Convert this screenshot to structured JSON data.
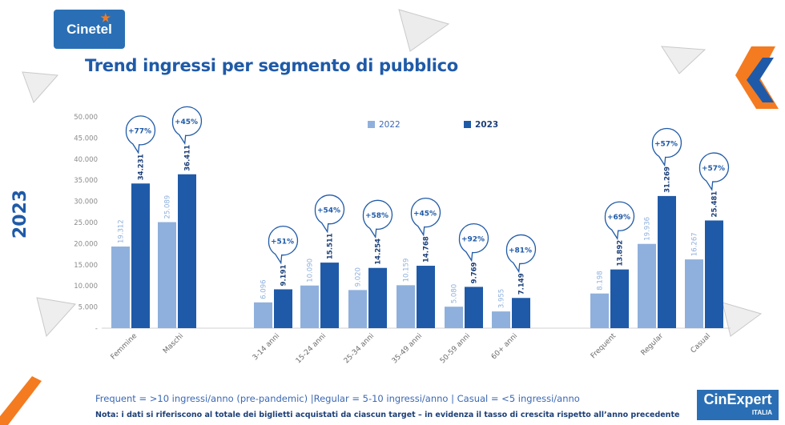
{
  "header": {
    "logo_text": "Cinetel",
    "title": "Trend ingressi per segmento di pubblico",
    "year_label": "2023"
  },
  "colors": {
    "y2022": "#8fb0dc",
    "y2023": "#1f5aa8",
    "title": "#1f5aa8",
    "accent": "#f47b20"
  },
  "chart_data": {
    "type": "bar",
    "title": "Trend ingressi per segmento di pubblico",
    "ylim": [
      0,
      50000
    ],
    "yticks": [
      "-",
      "5.000",
      "10.000",
      "15.000",
      "20.000",
      "25.000",
      "30.000",
      "35.000",
      "40.000",
      "45.000",
      "50.000"
    ],
    "legend": [
      "2022",
      "2023"
    ],
    "categories": [
      "Femmine",
      "Maschi",
      "3-14 anni",
      "15-24 anni",
      "25-34 anni",
      "35-49 anni",
      "50-59 anni",
      "60+ anni",
      "Frequent",
      "Regular",
      "Casual"
    ],
    "groups": [
      [
        0,
        1
      ],
      [
        2,
        3,
        4,
        5,
        6,
        7
      ],
      [
        8,
        9,
        10
      ]
    ],
    "series": [
      {
        "name": "2022",
        "values": [
          19312,
          25089,
          6096,
          10090,
          9020,
          10159,
          5080,
          3955,
          8198,
          19936,
          16267
        ],
        "labels": [
          "19.312",
          "25.089",
          "6.096",
          "10.090",
          "9.020",
          "10.159",
          "5.080",
          "3.955",
          "8.198",
          "19.936",
          "16.267"
        ]
      },
      {
        "name": "2023",
        "values": [
          34231,
          36411,
          9191,
          15511,
          14254,
          14768,
          9769,
          7149,
          13892,
          31269,
          25481
        ],
        "labels": [
          "34.231",
          "36.411",
          "9.191",
          "15.511",
          "14.254",
          "14.768",
          "9.769",
          "7.149",
          "13.892",
          "31.269",
          "25.481"
        ]
      }
    ],
    "growth": [
      "+77%",
      "+45%",
      "+51%",
      "+54%",
      "+58%",
      "+45%",
      "+92%",
      "+81%",
      "+69%",
      "+57%",
      "+57%"
    ]
  },
  "notes": {
    "definition": "Frequent = >10 ingressi/anno (pre-pandemic) |Regular = 5-10 ingressi/anno | Casual = <5 ingressi/anno",
    "footnote": "Nota: i dati si riferiscono al totale dei biglietti acquistati da ciascun target – in evidenza il tasso di crescita rispetto all’anno precedente"
  },
  "brand": {
    "name": "CinExpert",
    "sub": "ITALIA"
  }
}
